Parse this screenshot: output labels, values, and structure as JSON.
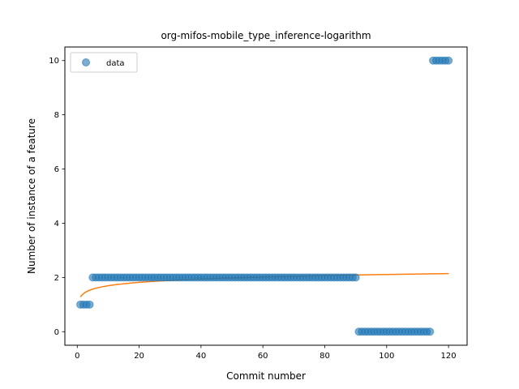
{
  "chart_data": {
    "type": "scatter",
    "title": "org-mifos-mobile_type_inference-logarithm",
    "xlabel": "Commit number",
    "ylabel": "Number of instance of a feature",
    "xlim": [
      -4,
      126
    ],
    "ylim": [
      -0.5,
      10.5
    ],
    "xticks": [
      0,
      20,
      40,
      60,
      80,
      100,
      120
    ],
    "yticks": [
      0,
      2,
      4,
      6,
      8,
      10
    ],
    "grid": false,
    "legend_position": "top-left",
    "series": [
      {
        "name": "data",
        "kind": "scatter",
        "color": "#1f77b4",
        "x": [
          1,
          2,
          3,
          4,
          5,
          6,
          7,
          8,
          9,
          10,
          11,
          12,
          13,
          14,
          15,
          16,
          17,
          18,
          19,
          20,
          21,
          22,
          23,
          24,
          25,
          26,
          27,
          28,
          29,
          30,
          31,
          32,
          33,
          34,
          35,
          36,
          37,
          38,
          39,
          40,
          41,
          42,
          43,
          44,
          45,
          46,
          47,
          48,
          49,
          50,
          51,
          52,
          53,
          54,
          55,
          56,
          57,
          58,
          59,
          60,
          61,
          62,
          63,
          64,
          65,
          66,
          67,
          68,
          69,
          70,
          71,
          72,
          73,
          74,
          75,
          76,
          77,
          78,
          79,
          80,
          81,
          82,
          83,
          84,
          85,
          86,
          87,
          88,
          89,
          90,
          91,
          92,
          93,
          94,
          95,
          96,
          97,
          98,
          99,
          100,
          101,
          102,
          103,
          104,
          105,
          106,
          107,
          108,
          109,
          110,
          111,
          112,
          113,
          114,
          115,
          116,
          117,
          118,
          119,
          120
        ],
        "y": [
          1,
          1,
          1,
          1,
          2,
          2,
          2,
          2,
          2,
          2,
          2,
          2,
          2,
          2,
          2,
          2,
          2,
          2,
          2,
          2,
          2,
          2,
          2,
          2,
          2,
          2,
          2,
          2,
          2,
          2,
          2,
          2,
          2,
          2,
          2,
          2,
          2,
          2,
          2,
          2,
          2,
          2,
          2,
          2,
          2,
          2,
          2,
          2,
          2,
          2,
          2,
          2,
          2,
          2,
          2,
          2,
          2,
          2,
          2,
          2,
          2,
          2,
          2,
          2,
          2,
          2,
          2,
          2,
          2,
          2,
          2,
          2,
          2,
          2,
          2,
          2,
          2,
          2,
          2,
          2,
          2,
          2,
          2,
          2,
          2,
          2,
          2,
          2,
          2,
          2,
          0,
          0,
          0,
          0,
          0,
          0,
          0,
          0,
          0,
          0,
          0,
          0,
          0,
          0,
          0,
          0,
          0,
          0,
          0,
          0,
          0,
          0,
          0,
          0,
          10,
          10,
          10,
          10,
          10,
          10
        ]
      },
      {
        "kind": "line",
        "color": "#ff7f0e",
        "fit": "logarithmic",
        "coefficients": {
          "a": 0.18,
          "b": 1.28
        },
        "x_range": [
          1,
          120
        ]
      }
    ]
  }
}
